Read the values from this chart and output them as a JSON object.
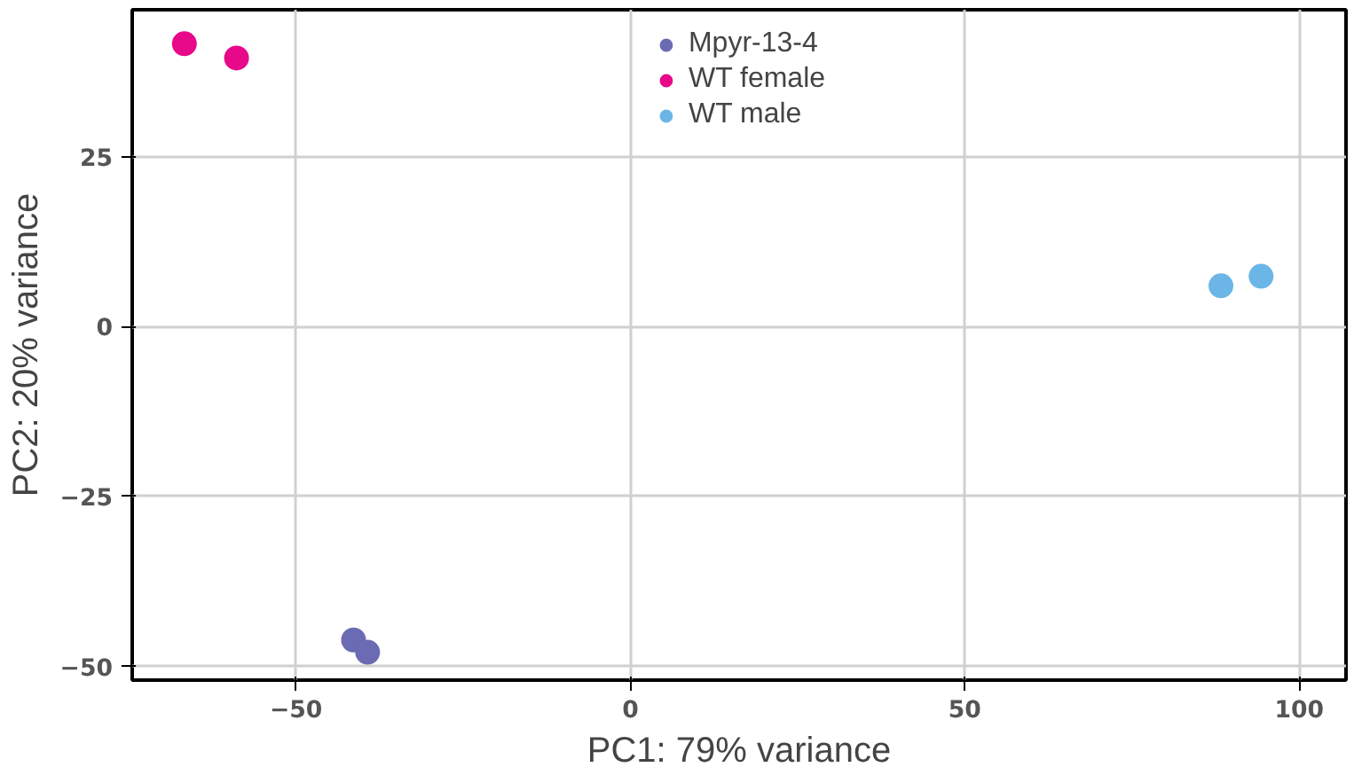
{
  "chart_data": {
    "type": "scatter",
    "xlabel": "PC1: 79% variance",
    "ylabel": "PC2: 20% variance",
    "xlim": [
      -74.5,
      107
    ],
    "ylim": [
      -52,
      46.6
    ],
    "xticks": [
      {
        "value": -50,
        "label": "−50"
      },
      0,
      50,
      100
    ],
    "yticks": [
      {
        "value": -50,
        "label": "−50"
      },
      {
        "value": -25,
        "label": "−25"
      },
      0,
      25
    ],
    "grid": true,
    "legend": "top",
    "marker": "circle",
    "series": [
      {
        "name": "Mpyr-13-4",
        "color": "#6b6bb4",
        "x": [
          -41.4,
          -39.3
        ],
        "values": [
          -46.1,
          -47.9
        ]
      },
      {
        "name": "WT female",
        "color": "#e8088a",
        "x": [
          -66.7,
          -58.9
        ],
        "values": [
          41.6,
          39.5
        ]
      },
      {
        "name": "WT male",
        "color": "#6bb6e6",
        "x": [
          88.3,
          94.3
        ],
        "values": [
          6.0,
          7.4
        ]
      }
    ]
  }
}
